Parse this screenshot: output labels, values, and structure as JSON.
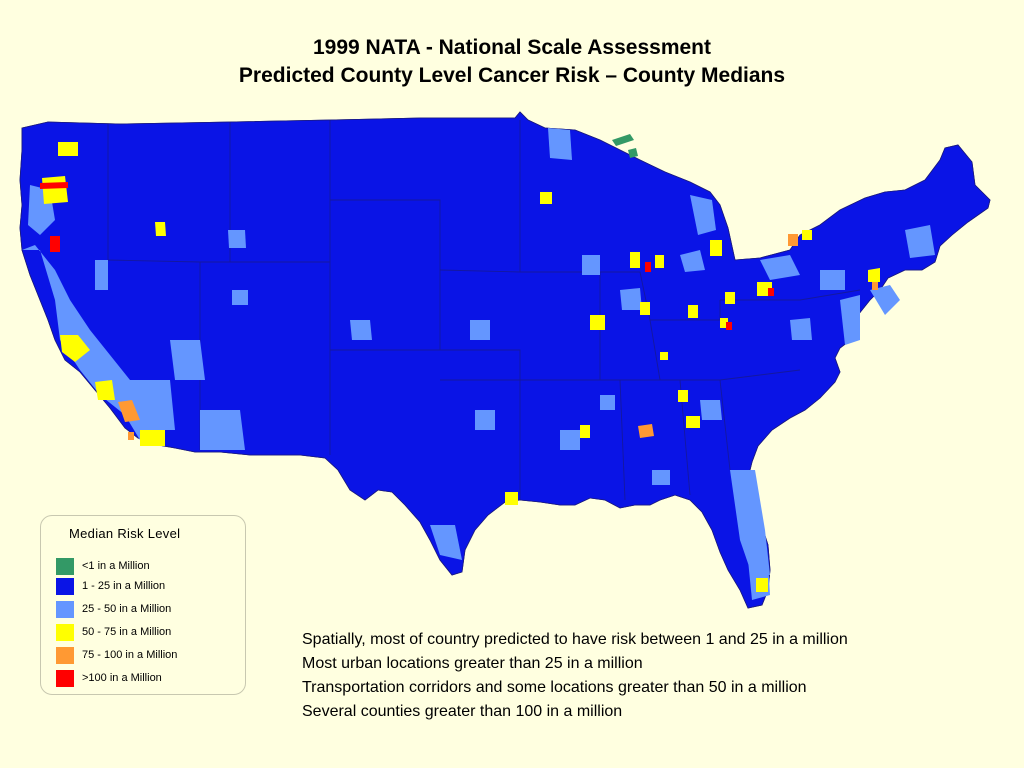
{
  "title": {
    "line1": "1999 NATA - National Scale Assessment",
    "line2": "Predicted County Level Cancer Risk – County Medians"
  },
  "colors": {
    "background": "#ffffe0",
    "lt1": "#339966",
    "r1_25": "#0a14e6",
    "r25_50": "#6496ff",
    "r50_75": "#ffff00",
    "r75_100": "#ff9933",
    "gt100": "#ff0000"
  },
  "legend": {
    "title": "Median Risk Level",
    "items": [
      {
        "label": "<1 in a Million",
        "color": "#339966"
      },
      {
        "label": "1 - 25 in a Million",
        "color": "#0a14e6"
      },
      {
        "label": "25 - 50 in a Million",
        "color": "#6496ff"
      },
      {
        "label": "50 - 75 in a Million",
        "color": "#ffff00"
      },
      {
        "label": "75 - 100 in a Million",
        "color": "#ff9933"
      },
      {
        "label": ">100 in a Million",
        "color": "#ff0000"
      }
    ]
  },
  "notes": [
    "Spatially, most of country predicted to have risk between 1 and 25 in a million",
    "Most urban locations greater than 25 in a million",
    "Transportation corridors and some locations greater than 50 in a million",
    "Several counties greater than 100 in a million"
  ]
}
